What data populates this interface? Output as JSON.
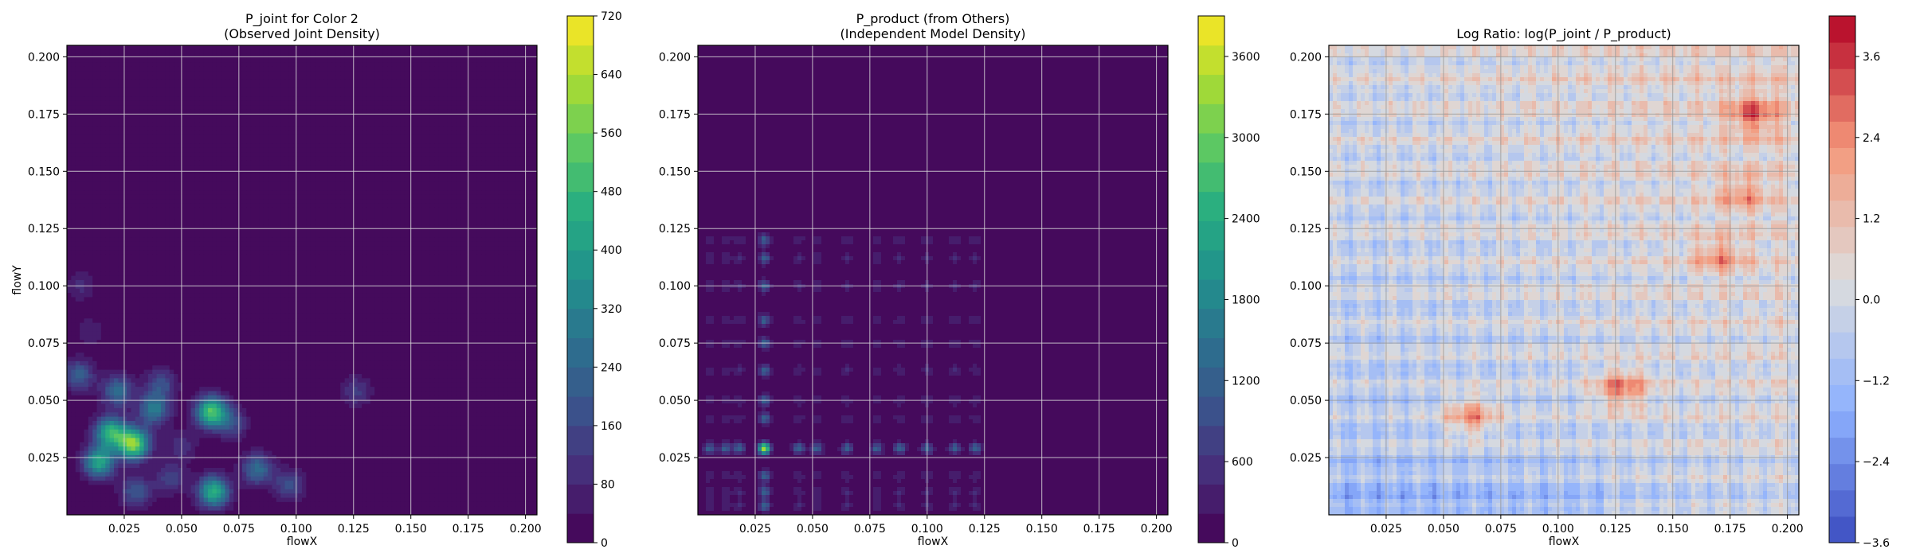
{
  "chart_data": [
    {
      "type": "heatmap",
      "title_lines": [
        "P_joint for Color 2",
        "(Observed Joint Density)"
      ],
      "xlabel": "flowX",
      "ylabel": "flowY",
      "xlim": [
        0.0,
        0.205
      ],
      "ylim": [
        0.0,
        0.205
      ],
      "xticks": [
        0.025,
        0.05,
        0.075,
        0.1,
        0.125,
        0.15,
        0.175,
        0.2
      ],
      "xtick_labels": [
        "0.025",
        "0.050",
        "0.075",
        "0.100",
        "0.125",
        "0.150",
        "0.175",
        "0.200"
      ],
      "yticks": [
        0.025,
        0.05,
        0.075,
        0.1,
        0.125,
        0.15,
        0.175,
        0.2
      ],
      "ytick_labels": [
        "0.025",
        "0.050",
        "0.075",
        "0.100",
        "0.125",
        "0.150",
        "0.175",
        "0.200"
      ],
      "grid": true,
      "colormap": "viridis",
      "colorbar": {
        "range": [
          0,
          720
        ],
        "ticks": [
          0,
          80,
          160,
          240,
          320,
          400,
          480,
          560,
          640,
          720
        ],
        "tick_labels": [
          "0",
          "80",
          "160",
          "240",
          "320",
          "400",
          "480",
          "560",
          "640",
          "720"
        ],
        "levels": 18
      },
      "hotspots": [
        {
          "x": 0.005,
          "y": 0.061,
          "value": 220
        },
        {
          "x": 0.022,
          "y": 0.054,
          "value": 260
        },
        {
          "x": 0.019,
          "y": 0.036,
          "value": 460
        },
        {
          "x": 0.029,
          "y": 0.031,
          "value": 600
        },
        {
          "x": 0.014,
          "y": 0.023,
          "value": 420
        },
        {
          "x": 0.038,
          "y": 0.046,
          "value": 300
        },
        {
          "x": 0.041,
          "y": 0.057,
          "value": 180
        },
        {
          "x": 0.063,
          "y": 0.045,
          "value": 520
        },
        {
          "x": 0.072,
          "y": 0.04,
          "value": 160
        },
        {
          "x": 0.064,
          "y": 0.01,
          "value": 460
        },
        {
          "x": 0.083,
          "y": 0.02,
          "value": 260
        },
        {
          "x": 0.097,
          "y": 0.013,
          "value": 180
        },
        {
          "x": 0.03,
          "y": 0.01,
          "value": 200
        },
        {
          "x": 0.045,
          "y": 0.016,
          "value": 150
        },
        {
          "x": 0.126,
          "y": 0.054,
          "value": 130
        },
        {
          "x": 0.006,
          "y": 0.1,
          "value": 90
        },
        {
          "x": 0.01,
          "y": 0.08,
          "value": 70
        },
        {
          "x": 0.05,
          "y": 0.03,
          "value": 110
        }
      ]
    },
    {
      "type": "heatmap",
      "title_lines": [
        "P_product (from Others)",
        "(Independent Model Density)"
      ],
      "xlabel": "flowX",
      "ylabel": "",
      "xlim": [
        0.0,
        0.205
      ],
      "ylim": [
        0.0,
        0.205
      ],
      "xticks": [
        0.025,
        0.05,
        0.075,
        0.1,
        0.125,
        0.15,
        0.175,
        0.2
      ],
      "xtick_labels": [
        "0.025",
        "0.050",
        "0.075",
        "0.100",
        "0.125",
        "0.150",
        "0.175",
        "0.200"
      ],
      "yticks": [
        0.025,
        0.05,
        0.075,
        0.1,
        0.125,
        0.15,
        0.175,
        0.2
      ],
      "ytick_labels": [
        "0.025",
        "0.050",
        "0.075",
        "0.100",
        "0.125",
        "0.150",
        "0.175",
        "0.200"
      ],
      "grid": true,
      "colormap": "viridis",
      "colorbar": {
        "range": [
          0,
          3900
        ],
        "ticks": [
          0,
          600,
          1200,
          1800,
          2400,
          3000,
          3600
        ],
        "tick_labels": [
          "0",
          "600",
          "1200",
          "1800",
          "2400",
          "3000",
          "3600"
        ],
        "levels": 18
      },
      "marginal_x_peaks": [
        0.005,
        0.012,
        0.018,
        0.029,
        0.044,
        0.052,
        0.065,
        0.078,
        0.088,
        0.1,
        0.112,
        0.121
      ],
      "marginal_y_peaks": [
        0.004,
        0.01,
        0.017,
        0.029,
        0.042,
        0.05,
        0.063,
        0.075,
        0.085,
        0.1,
        0.112,
        0.12
      ],
      "peak": {
        "x": 0.029,
        "y": 0.029,
        "value": 3600
      }
    },
    {
      "type": "heatmap",
      "title_lines": [
        "Log Ratio: log(P_joint / P_product)"
      ],
      "xlabel": "flowX",
      "ylabel": "",
      "xlim": [
        0.0,
        0.205
      ],
      "ylim": [
        0.0,
        0.205
      ],
      "xticks": [
        0.025,
        0.05,
        0.075,
        0.1,
        0.125,
        0.15,
        0.175,
        0.2
      ],
      "xtick_labels": [
        "0.025",
        "0.050",
        "0.075",
        "0.100",
        "0.125",
        "0.150",
        "0.175",
        "0.200"
      ],
      "yticks": [
        0.025,
        0.05,
        0.075,
        0.1,
        0.125,
        0.15,
        0.175,
        0.2
      ],
      "ytick_labels": [
        "0.025",
        "0.050",
        "0.075",
        "0.100",
        "0.125",
        "0.150",
        "0.175",
        "0.200"
      ],
      "grid": true,
      "colormap": "coolwarm",
      "colorbar": {
        "range": [
          -3.6,
          4.2
        ],
        "ticks": [
          -3.6,
          -2.4,
          -1.2,
          0.0,
          1.2,
          2.4,
          3.6
        ],
        "tick_labels": [
          "−3.6",
          "−2.4",
          "−1.2",
          "0.0",
          "1.2",
          "2.4",
          "3.6"
        ],
        "levels": 20
      },
      "hot_regions": [
        {
          "x": 0.128,
          "y": 0.055,
          "value": 2.6
        },
        {
          "x": 0.062,
          "y": 0.043,
          "value": 2.4
        },
        {
          "x": 0.185,
          "y": 0.175,
          "value": 2.4
        },
        {
          "x": 0.17,
          "y": 0.113,
          "value": 1.8
        },
        {
          "x": 0.18,
          "y": 0.14,
          "value": 1.6
        }
      ]
    }
  ]
}
